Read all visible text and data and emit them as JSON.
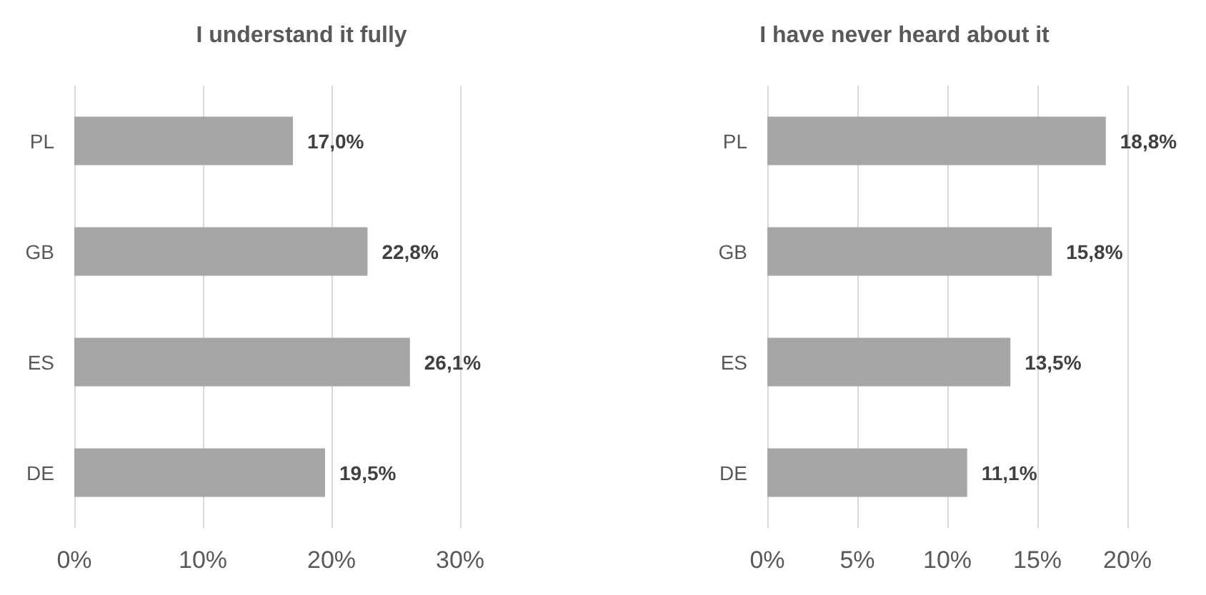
{
  "chart_data": [
    {
      "type": "bar",
      "orientation": "horizontal",
      "title": "I understand it fully",
      "categories": [
        "PL",
        "GB",
        "ES",
        "DE"
      ],
      "values": [
        17.0,
        22.8,
        26.1,
        19.5
      ],
      "value_labels": [
        "17,0%",
        "22,8%",
        "26,1%",
        "19,5%"
      ],
      "color": "#a6a6a6",
      "xlim": [
        0,
        30
      ],
      "xticks": [
        {
          "value": 0,
          "label": "0%"
        },
        {
          "value": 10,
          "label": "10%"
        },
        {
          "value": 20,
          "label": "20%"
        },
        {
          "value": 30,
          "label": "30%"
        }
      ],
      "grid": "x"
    },
    {
      "type": "bar",
      "orientation": "horizontal",
      "title": "I have never heard about it",
      "categories": [
        "PL",
        "GB",
        "ES",
        "DE"
      ],
      "values": [
        18.8,
        15.8,
        13.5,
        11.1
      ],
      "value_labels": [
        "18,8%",
        "15,8%",
        "13,5%",
        "11,1%"
      ],
      "color": "#a6a6a6",
      "xlim": [
        0,
        20
      ],
      "xticks": [
        {
          "value": 0,
          "label": "0%"
        },
        {
          "value": 5,
          "label": "5%"
        },
        {
          "value": 10,
          "label": "10%"
        },
        {
          "value": 15,
          "label": "15%"
        },
        {
          "value": 20,
          "label": "20%"
        }
      ],
      "grid": "x"
    }
  ]
}
